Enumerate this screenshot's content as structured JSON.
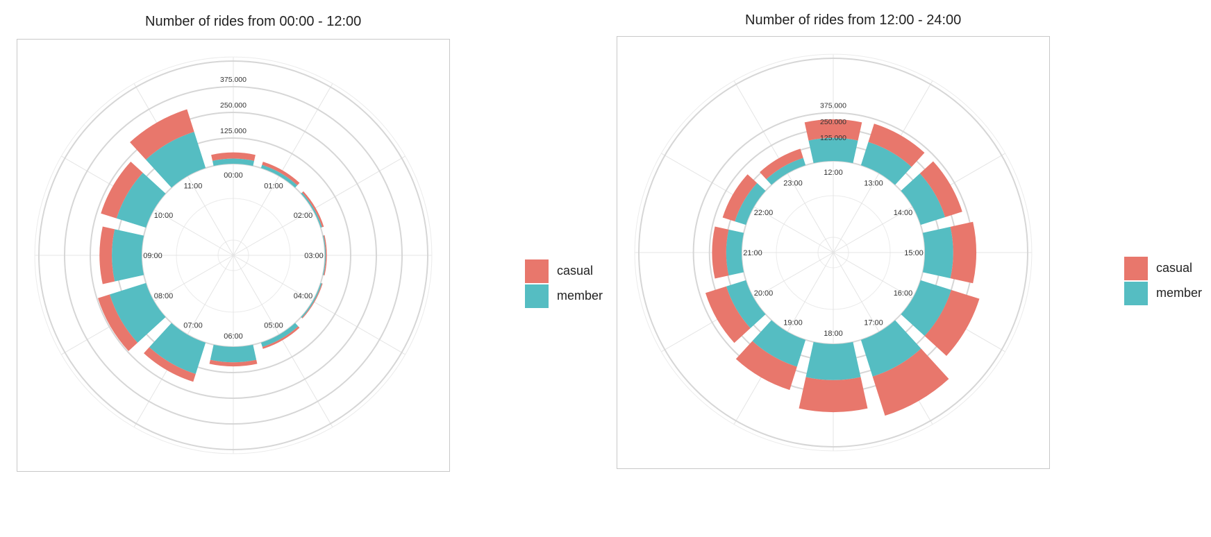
{
  "colors": {
    "casual": "#E8776C",
    "member": "#55BDC2"
  },
  "legend": {
    "items": [
      {
        "label": "casual"
      },
      {
        "label": "member"
      }
    ]
  },
  "chart_data": [
    {
      "type": "bar",
      "subtype": "polar-stacked",
      "title": "Number of rides from 00:00 - 12:00",
      "categories": [
        "00:00",
        "01:00",
        "02:00",
        "03:00",
        "04:00",
        "05:00",
        "06:00",
        "07:00",
        "08:00",
        "09:00",
        "10:00",
        "11:00"
      ],
      "series": [
        {
          "name": "member",
          "values": [
            25000,
            16000,
            7000,
            4000,
            6000,
            22000,
            75000,
            160000,
            185000,
            145000,
            150000,
            185000
          ]
        },
        {
          "name": "casual",
          "values": [
            30000,
            16000,
            9000,
            5000,
            4000,
            10000,
            20000,
            40000,
            60000,
            60000,
            80000,
            115000
          ]
        }
      ],
      "radial_ticks": [
        "125.000",
        "250.000",
        "375.000"
      ],
      "radial_tick_values": [
        125000,
        250000,
        375000
      ],
      "rmax": 500000,
      "legend_position": "right",
      "grid": true
    },
    {
      "type": "bar",
      "subtype": "polar-stacked",
      "title": "Number of rides from 12:00 - 24:00",
      "categories": [
        "12:00",
        "13:00",
        "14:00",
        "15:00",
        "16:00",
        "17:00",
        "18:00",
        "19:00",
        "20:00",
        "21:00",
        "22:00",
        "23:00"
      ],
      "series": [
        {
          "name": "member",
          "values": [
            180000,
            190000,
            200000,
            220000,
            250000,
            300000,
            280000,
            220000,
            160000,
            120000,
            90000,
            60000
          ]
        },
        {
          "name": "casual",
          "values": [
            145000,
            150000,
            140000,
            180000,
            230000,
            320000,
            250000,
            190000,
            170000,
            110000,
            100000,
            75000
          ]
        }
      ],
      "radial_ticks": [
        "125.000",
        "250.000",
        "375.000"
      ],
      "radial_tick_values": [
        125000,
        250000,
        375000
      ],
      "rmax": 800000,
      "legend_position": "right",
      "grid": true
    }
  ]
}
